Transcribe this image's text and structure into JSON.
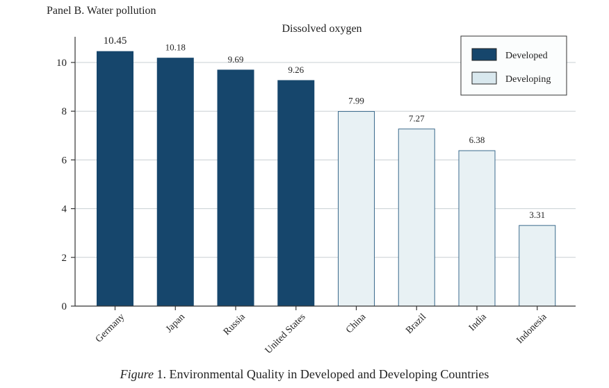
{
  "panel_label": "Panel B. Water pollution",
  "caption": {
    "figure_word": "Figure",
    "text": " 1. Environmental Quality in Developed and Developing Countries"
  },
  "colors": {
    "developed": "#16466c",
    "developing": "#e8f1f4",
    "developing_stroke": "#3b6a8c",
    "grid": "#c8cfd3",
    "axis": "#333333"
  },
  "chart_data": {
    "type": "bar",
    "title": "Dissolved oxygen",
    "categories": [
      "Germany",
      "Japan",
      "Russia",
      "United States",
      "China",
      "Brazil",
      "India",
      "Indonesia"
    ],
    "values": [
      10.45,
      10.18,
      9.69,
      9.26,
      7.99,
      7.27,
      6.38,
      3.31
    ],
    "value_labels": [
      "10.45",
      "10.18",
      "9.69",
      "9.26",
      "7.99",
      "7.27",
      "6.38",
      "3.31"
    ],
    "groups": [
      "Developed",
      "Developed",
      "Developed",
      "Developed",
      "Developing",
      "Developing",
      "Developing",
      "Developing"
    ],
    "legend": [
      {
        "name": "Developed",
        "color": "#16466c"
      },
      {
        "name": "Developing",
        "color": "#e8f1f4"
      }
    ],
    "legend_position": "top-right",
    "ylim": [
      0,
      11
    ],
    "yticks": [
      0,
      2,
      4,
      6,
      8,
      10
    ],
    "grid": true,
    "xlabel": "",
    "ylabel": ""
  }
}
